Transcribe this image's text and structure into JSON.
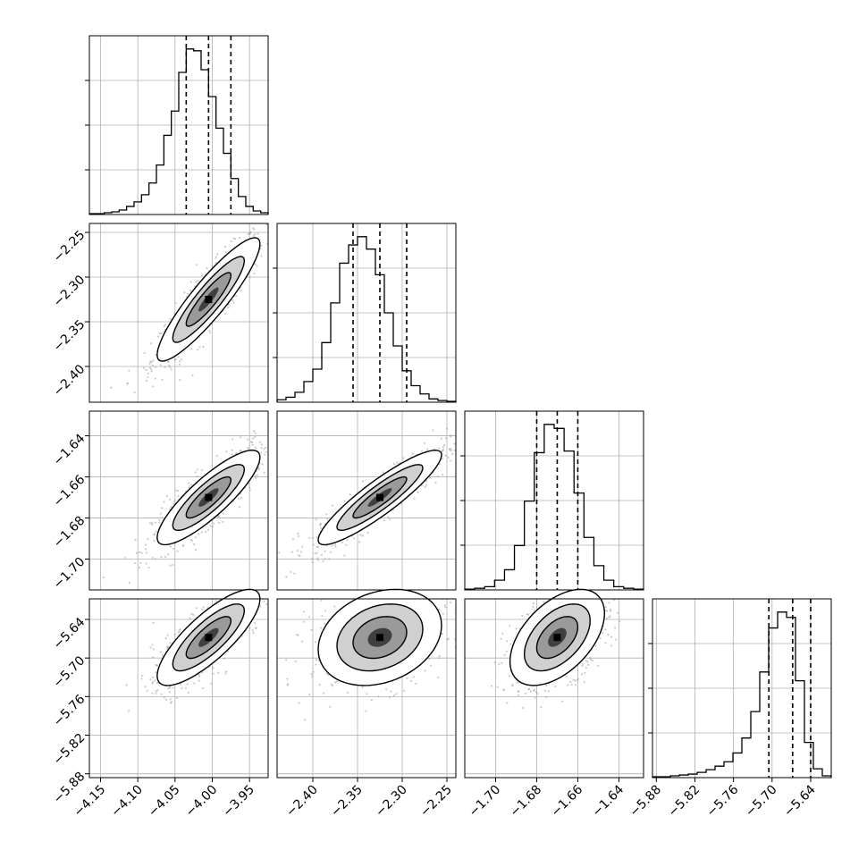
{
  "chart_data": {
    "type": "corner",
    "parameters": 4,
    "axis_ticks": [
      [
        "−4.15",
        "−4.10",
        "−4.05",
        "−4.00",
        "−3.95"
      ],
      [
        "−2.40",
        "−2.35",
        "−2.30",
        "−2.25"
      ],
      [
        "−1.70",
        "−1.68",
        "−1.66",
        "−1.64"
      ],
      [
        "−5.88",
        "−5.82",
        "−5.76",
        "−5.70",
        "−5.64"
      ]
    ],
    "axis_tick_values": [
      [
        -4.15,
        -4.1,
        -4.05,
        -4.0,
        -3.95
      ],
      [
        -2.4,
        -2.35,
        -2.3,
        -2.25
      ],
      [
        -1.7,
        -1.68,
        -1.66,
        -1.64
      ],
      [
        -5.88,
        -5.82,
        -5.76,
        -5.7,
        -5.64
      ]
    ],
    "ranges": [
      [
        -4.165,
        -3.925
      ],
      [
        -2.44,
        -2.24
      ],
      [
        -1.715,
        -1.628
      ],
      [
        -5.886,
        -5.608
      ]
    ],
    "quantiles": [
      [
        -4.035,
        -4.005,
        -3.975
      ],
      [
        -2.355,
        -2.325,
        -2.295
      ],
      [
        -1.68,
        -1.67,
        -1.66
      ],
      [
        -5.705,
        -5.668,
        -5.64
      ]
    ],
    "histograms": [
      [
        1,
        1,
        2,
        3,
        5,
        9,
        14,
        22,
        35,
        55,
        88,
        115,
        158,
        184,
        182,
        161,
        131,
        96,
        68,
        40,
        20,
        9,
        4,
        2
      ],
      [
        3,
        6,
        12,
        25,
        40,
        72,
        120,
        168,
        190,
        200,
        185,
        154,
        108,
        68,
        38,
        20,
        10,
        4,
        2,
        1
      ],
      [
        1,
        2,
        4,
        12,
        25,
        55,
        110,
        170,
        205,
        200,
        172,
        120,
        65,
        30,
        12,
        4,
        2,
        1
      ],
      [
        1,
        1,
        2,
        3,
        4,
        6,
        9,
        13,
        18,
        28,
        45,
        75,
        120,
        170,
        188,
        182,
        110,
        40,
        10,
        2
      ]
    ],
    "pair_correlations": {
      "1-0": 0.9,
      "2-0": 0.85,
      "2-1": 0.9,
      "3-0": 0.8,
      "3-1": 0.25,
      "3-2": 0.5
    },
    "grid": true,
    "colors": {
      "contour": "#000000",
      "points": "#a0a0a0",
      "hist": "#000000",
      "grid": "#b0b0b0"
    }
  }
}
